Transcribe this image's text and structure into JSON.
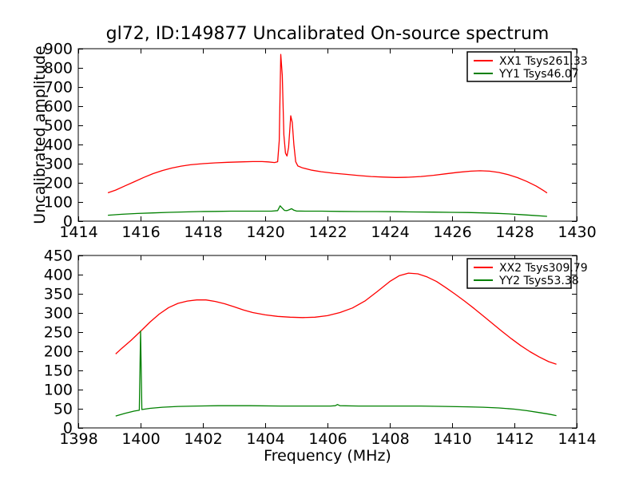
{
  "title": "gl72, ID:149877 Uncalibrated On-source spectrum",
  "ylabel": "Uncalibrated amplitude",
  "xlabel": "Frequency (MHz)",
  "colors": {
    "xx_line": "#ff0000",
    "yy_line": "#008000",
    "frame": "#000000",
    "background": "#ffffff",
    "legend_border": "#000000"
  },
  "chart_data": [
    {
      "type": "line",
      "subplot": "top",
      "xlim": [
        1414,
        1430
      ],
      "ylim": [
        0,
        900
      ],
      "xticks": [
        1414,
        1416,
        1418,
        1420,
        1422,
        1424,
        1426,
        1428,
        1430
      ],
      "yticks": [
        0,
        100,
        200,
        300,
        400,
        500,
        600,
        700,
        800,
        900
      ],
      "grid": false,
      "legend_position": "upper right",
      "series": [
        {
          "name": "XX1 Tsys261.33",
          "color": "#ff0000",
          "points": [
            [
              1414.95,
              148
            ],
            [
              1415.2,
              162
            ],
            [
              1415.5,
              184
            ],
            [
              1415.8,
              206
            ],
            [
              1416.1,
              228
            ],
            [
              1416.4,
              248
            ],
            [
              1416.7,
              264
            ],
            [
              1417.0,
              277
            ],
            [
              1417.3,
              287
            ],
            [
              1417.6,
              294
            ],
            [
              1418.0,
              300
            ],
            [
              1418.4,
              304
            ],
            [
              1418.8,
              307
            ],
            [
              1419.2,
              309
            ],
            [
              1419.6,
              311
            ],
            [
              1419.9,
              311
            ],
            [
              1420.1,
              309
            ],
            [
              1420.3,
              306
            ],
            [
              1420.4,
              310
            ],
            [
              1420.45,
              420
            ],
            [
              1420.5,
              870
            ],
            [
              1420.55,
              760
            ],
            [
              1420.6,
              450
            ],
            [
              1420.65,
              355
            ],
            [
              1420.7,
              340
            ],
            [
              1420.75,
              385
            ],
            [
              1420.82,
              550
            ],
            [
              1420.87,
              515
            ],
            [
              1420.92,
              400
            ],
            [
              1420.98,
              310
            ],
            [
              1421.05,
              288
            ],
            [
              1421.2,
              278
            ],
            [
              1421.5,
              266
            ],
            [
              1421.8,
              258
            ],
            [
              1422.2,
              250
            ],
            [
              1422.6,
              244
            ],
            [
              1423.0,
              238
            ],
            [
              1423.4,
              233
            ],
            [
              1423.8,
              230
            ],
            [
              1424.2,
              228
            ],
            [
              1424.6,
              229
            ],
            [
              1425.0,
              233
            ],
            [
              1425.4,
              239
            ],
            [
              1425.8,
              247
            ],
            [
              1426.2,
              255
            ],
            [
              1426.6,
              261
            ],
            [
              1426.9,
              263
            ],
            [
              1427.2,
              261
            ],
            [
              1427.5,
              254
            ],
            [
              1427.8,
              243
            ],
            [
              1428.1,
              227
            ],
            [
              1428.4,
              207
            ],
            [
              1428.7,
              183
            ],
            [
              1428.95,
              158
            ],
            [
              1429.05,
              147
            ]
          ]
        },
        {
          "name": "YY1 Tsys46.07",
          "color": "#008000",
          "points": [
            [
              1414.95,
              31
            ],
            [
              1415.4,
              36
            ],
            [
              1415.9,
              40
            ],
            [
              1416.4,
              43
            ],
            [
              1416.9,
              46
            ],
            [
              1417.4,
              48
            ],
            [
              1417.9,
              50
            ],
            [
              1418.4,
              51
            ],
            [
              1418.9,
              52
            ],
            [
              1419.4,
              52
            ],
            [
              1419.9,
              52
            ],
            [
              1420.2,
              52
            ],
            [
              1420.4,
              55
            ],
            [
              1420.48,
              80
            ],
            [
              1420.55,
              68
            ],
            [
              1420.62,
              56
            ],
            [
              1420.7,
              55
            ],
            [
              1420.78,
              60
            ],
            [
              1420.85,
              65
            ],
            [
              1420.92,
              57
            ],
            [
              1421.0,
              53
            ],
            [
              1421.3,
              52
            ],
            [
              1421.8,
              52
            ],
            [
              1422.4,
              51
            ],
            [
              1423.0,
              50
            ],
            [
              1423.6,
              50
            ],
            [
              1424.2,
              49
            ],
            [
              1424.8,
              48
            ],
            [
              1425.4,
              47
            ],
            [
              1426.0,
              46
            ],
            [
              1426.5,
              45
            ],
            [
              1427.0,
              43
            ],
            [
              1427.4,
              41
            ],
            [
              1427.8,
              38
            ],
            [
              1428.2,
              34
            ],
            [
              1428.6,
              30
            ],
            [
              1429.05,
              25
            ]
          ]
        }
      ]
    },
    {
      "type": "line",
      "subplot": "bottom",
      "xlim": [
        1398,
        1414
      ],
      "ylim": [
        0,
        450
      ],
      "xticks": [
        1398,
        1400,
        1402,
        1404,
        1406,
        1408,
        1410,
        1412,
        1414
      ],
      "yticks": [
        0,
        50,
        100,
        150,
        200,
        250,
        300,
        350,
        400,
        450
      ],
      "grid": false,
      "legend_position": "upper right",
      "series": [
        {
          "name": "XX2 Tsys309.79",
          "color": "#ff0000",
          "points": [
            [
              1399.2,
              193
            ],
            [
              1399.4,
              208
            ],
            [
              1399.7,
              229
            ],
            [
              1400.0,
              252
            ],
            [
              1400.3,
              276
            ],
            [
              1400.6,
              297
            ],
            [
              1400.9,
              314
            ],
            [
              1401.2,
              325
            ],
            [
              1401.5,
              331
            ],
            [
              1401.8,
              334
            ],
            [
              1402.1,
              334
            ],
            [
              1402.4,
              330
            ],
            [
              1402.7,
              324
            ],
            [
              1403.0,
              316
            ],
            [
              1403.3,
              308
            ],
            [
              1403.6,
              301
            ],
            [
              1404.0,
              295
            ],
            [
              1404.4,
              291
            ],
            [
              1404.8,
              289
            ],
            [
              1405.2,
              288
            ],
            [
              1405.6,
              289
            ],
            [
              1406.0,
              293
            ],
            [
              1406.4,
              301
            ],
            [
              1406.8,
              313
            ],
            [
              1407.2,
              331
            ],
            [
              1407.6,
              356
            ],
            [
              1408.0,
              382
            ],
            [
              1408.3,
              397
            ],
            [
              1408.6,
              404
            ],
            [
              1408.9,
              402
            ],
            [
              1409.2,
              394
            ],
            [
              1409.5,
              382
            ],
            [
              1409.8,
              366
            ],
            [
              1410.1,
              349
            ],
            [
              1410.4,
              331
            ],
            [
              1410.7,
              312
            ],
            [
              1411.0,
              292
            ],
            [
              1411.3,
              272
            ],
            [
              1411.6,
              252
            ],
            [
              1411.9,
              233
            ],
            [
              1412.2,
              215
            ],
            [
              1412.5,
              199
            ],
            [
              1412.8,
              185
            ],
            [
              1413.1,
              173
            ],
            [
              1413.35,
              166
            ]
          ]
        },
        {
          "name": "YY2 Tsys53.38",
          "color": "#008000",
          "points": [
            [
              1399.2,
              31
            ],
            [
              1399.5,
              38
            ],
            [
              1399.8,
              44
            ],
            [
              1399.96,
              46
            ],
            [
              1400.0,
              253
            ],
            [
              1400.04,
              48
            ],
            [
              1400.3,
              51
            ],
            [
              1400.7,
              54
            ],
            [
              1401.2,
              56
            ],
            [
              1401.8,
              57
            ],
            [
              1402.5,
              58
            ],
            [
              1403.5,
              58
            ],
            [
              1404.5,
              57
            ],
            [
              1405.5,
              57
            ],
            [
              1406.1,
              57
            ],
            [
              1406.25,
              58
            ],
            [
              1406.32,
              61
            ],
            [
              1406.4,
              58
            ],
            [
              1407.0,
              57
            ],
            [
              1408.0,
              57
            ],
            [
              1409.0,
              57
            ],
            [
              1409.8,
              56
            ],
            [
              1410.5,
              55
            ],
            [
              1411.0,
              54
            ],
            [
              1411.5,
              52
            ],
            [
              1412.0,
              49
            ],
            [
              1412.4,
              45
            ],
            [
              1412.8,
              40
            ],
            [
              1413.1,
              36
            ],
            [
              1413.35,
              32
            ]
          ]
        }
      ]
    }
  ]
}
